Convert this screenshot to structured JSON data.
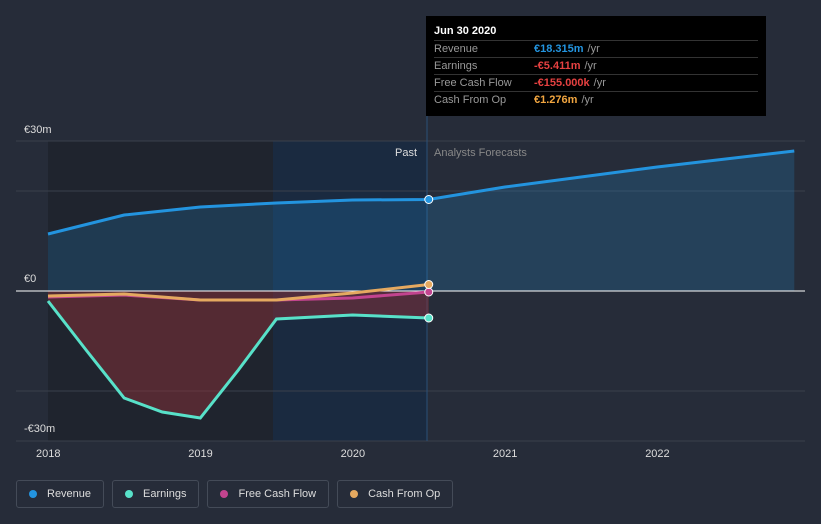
{
  "tooltip": {
    "date": "Jun 30 2020",
    "rows": [
      {
        "label": "Revenue",
        "value": "€18.315m",
        "unit": "/yr",
        "color": "#2394df"
      },
      {
        "label": "Earnings",
        "value": "-€5.411m",
        "unit": "/yr",
        "color": "#e64141"
      },
      {
        "label": "Free Cash Flow",
        "value": "-€155.000k",
        "unit": "/yr",
        "color": "#e64141"
      },
      {
        "label": "Cash From Op",
        "value": "€1.276m",
        "unit": "/yr",
        "color": "#f2a640"
      }
    ]
  },
  "chart_data": {
    "type": "line",
    "ylim": [
      -30,
      30
    ],
    "y_ticks": [
      "€30m",
      "€0",
      "-€30m"
    ],
    "x_ticks": [
      "2018",
      "2019",
      "2020",
      "2021",
      "2022"
    ],
    "past_label": "Past",
    "forecast_label": "Analysts Forecasts",
    "series": [
      {
        "name": "Revenue",
        "color": "#2394df",
        "x": [
          2018,
          2018.5,
          2019,
          2019.5,
          2020,
          2020.5,
          2021,
          2021.5,
          2022,
          2022.9
        ],
        "values": [
          11.4,
          15.2,
          16.8,
          17.6,
          18.2,
          18.3,
          20.8,
          22.8,
          24.8,
          28
        ]
      },
      {
        "name": "Earnings",
        "color": "#58e1c9",
        "x": [
          2018,
          2018.25,
          2018.5,
          2018.75,
          2019,
          2019.25,
          2019.5,
          2020,
          2020.5
        ],
        "values": [
          -2,
          -11.8,
          -21.4,
          -24.2,
          -25.4,
          -15.8,
          -5.6,
          -4.8,
          -5.4
        ]
      },
      {
        "name": "Free Cash Flow",
        "color": "#c2448f",
        "x": [
          2018,
          2018.5,
          2019,
          2019.5,
          2020,
          2020.5
        ],
        "values": [
          -1.2,
          -0.8,
          -1.8,
          -1.8,
          -1.4,
          -0.2
        ]
      },
      {
        "name": "Cash From Op",
        "color": "#e5a960",
        "x": [
          2018,
          2018.5,
          2019,
          2019.5,
          2020,
          2020.5
        ],
        "values": [
          -1,
          -0.6,
          -1.8,
          -1.8,
          -0.4,
          1.3
        ]
      }
    ]
  }
}
